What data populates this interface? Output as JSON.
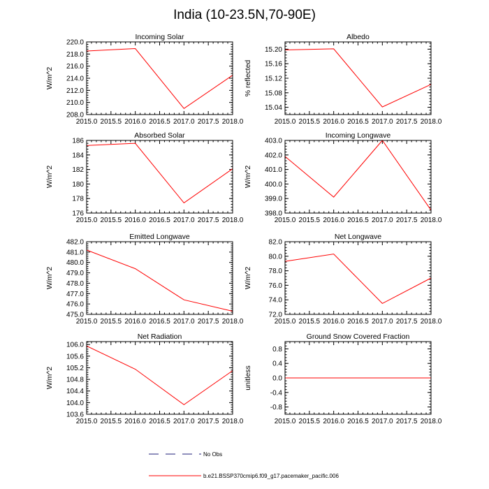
{
  "figure_title": "India (10-23.5N,70-90E)",
  "chart_data": [
    {
      "type": "line",
      "title": "Incoming Solar",
      "xlabel": "",
      "ylabel": "W/m^2",
      "x": [
        2015.0,
        2016.0,
        2017.0,
        2018.0
      ],
      "series": [
        {
          "name": "b.e21.BSSP370cmip6.f09_g17.pacemaker_pacific.006",
          "values": [
            218.5,
            218.9,
            209.0,
            214.5
          ]
        }
      ],
      "xlim": [
        2015.0,
        2018.0
      ],
      "ylim": [
        208.0,
        220.0
      ],
      "xticks": [
        "2015.0",
        "2015.5",
        "2016.0",
        "2016.5",
        "2017.0",
        "2017.5",
        "2018.0"
      ],
      "yticks": [
        "208.0",
        "210.0",
        "212.0",
        "214.0",
        "216.0",
        "218.0",
        "220.0"
      ]
    },
    {
      "type": "line",
      "title": "Albedo",
      "xlabel": "",
      "ylabel": "% reflected",
      "x": [
        2015.0,
        2016.0,
        2017.0,
        2018.0
      ],
      "series": [
        {
          "name": "b.e21.BSSP370cmip6.f09_g17.pacemaker_pacific.006",
          "values": [
            15.198,
            15.201,
            15.041,
            15.103
          ]
        }
      ],
      "xlim": [
        2015.0,
        2018.0
      ],
      "ylim": [
        15.02,
        15.22
      ],
      "xticks": [
        "2015.0",
        "2015.5",
        "2016.0",
        "2016.5",
        "2017.0",
        "2017.5",
        "2018.0"
      ],
      "yticks": [
        "15.04",
        "15.08",
        "15.12",
        "15.16",
        "15.20"
      ]
    },
    {
      "type": "line",
      "title": "Absorbed Solar",
      "xlabel": "",
      "ylabel": "W/m^2",
      "x": [
        2015.0,
        2016.0,
        2017.0,
        2018.0
      ],
      "series": [
        {
          "name": "b.e21.BSSP370cmip6.f09_g17.pacemaker_pacific.006",
          "values": [
            185.3,
            185.6,
            177.4,
            182.1
          ]
        }
      ],
      "xlim": [
        2015.0,
        2018.0
      ],
      "ylim": [
        176.0,
        186.0
      ],
      "xticks": [
        "2015.0",
        "2015.5",
        "2016.0",
        "2016.5",
        "2017.0",
        "2017.5",
        "2018.0"
      ],
      "yticks": [
        "176",
        "178",
        "180",
        "182",
        "184",
        "186"
      ]
    },
    {
      "type": "line",
      "title": "Incoming Longwave",
      "xlabel": "",
      "ylabel": "W/m^2",
      "x": [
        2015.0,
        2016.0,
        2017.0,
        2018.0
      ],
      "series": [
        {
          "name": "b.e21.BSSP370cmip6.f09_g17.pacemaker_pacific.006",
          "values": [
            401.9,
            399.1,
            403.0,
            398.2
          ]
        }
      ],
      "xlim": [
        2015.0,
        2018.0
      ],
      "ylim": [
        398.0,
        403.0
      ],
      "xticks": [
        "2015.0",
        "2015.5",
        "2016.0",
        "2016.5",
        "2017.0",
        "2017.5",
        "2018.0"
      ],
      "yticks": [
        "398.0",
        "399.0",
        "400.0",
        "401.0",
        "402.0",
        "403.0"
      ]
    },
    {
      "type": "line",
      "title": "Emitted Longwave",
      "xlabel": "",
      "ylabel": "W/m^2",
      "x": [
        2015.0,
        2016.0,
        2017.0,
        2018.0
      ],
      "series": [
        {
          "name": "b.e21.BSSP370cmip6.f09_g17.pacemaker_pacific.006",
          "values": [
            481.2,
            479.4,
            476.4,
            475.3
          ]
        }
      ],
      "xlim": [
        2015.0,
        2018.0
      ],
      "ylim": [
        475.0,
        482.0
      ],
      "xticks": [
        "2015.0",
        "2015.5",
        "2016.0",
        "2016.5",
        "2017.0",
        "2017.5",
        "2018.0"
      ],
      "yticks": [
        "475.0",
        "476.0",
        "477.0",
        "478.0",
        "479.0",
        "480.0",
        "481.0",
        "482.0"
      ]
    },
    {
      "type": "line",
      "title": "Net Longwave",
      "xlabel": "",
      "ylabel": "W/m^2",
      "x": [
        2015.0,
        2016.0,
        2017.0,
        2018.0
      ],
      "series": [
        {
          "name": "b.e21.BSSP370cmip6.f09_g17.pacemaker_pacific.006",
          "values": [
            79.3,
            80.3,
            73.5,
            77.0
          ]
        }
      ],
      "xlim": [
        2015.0,
        2018.0
      ],
      "ylim": [
        72.0,
        82.0
      ],
      "xticks": [
        "2015.0",
        "2015.5",
        "2016.0",
        "2016.5",
        "2017.0",
        "2017.5",
        "2018.0"
      ],
      "yticks": [
        "72.0",
        "74.0",
        "76.0",
        "78.0",
        "80.0",
        "82.0"
      ]
    },
    {
      "type": "line",
      "title": "Net Radiation",
      "xlabel": "",
      "ylabel": "W/m^2",
      "x": [
        2015.0,
        2016.0,
        2017.0,
        2018.0
      ],
      "series": [
        {
          "name": "b.e21.BSSP370cmip6.f09_g17.pacemaker_pacific.006",
          "values": [
            105.95,
            105.15,
            103.93,
            105.1
          ]
        }
      ],
      "xlim": [
        2015.0,
        2018.0
      ],
      "ylim": [
        103.6,
        106.1
      ],
      "xticks": [
        "2015.0",
        "2015.5",
        "2016.0",
        "2016.5",
        "2017.0",
        "2017.5",
        "2018.0"
      ],
      "yticks": [
        "103.6",
        "104.0",
        "104.4",
        "104.8",
        "105.2",
        "105.6",
        "106.0"
      ]
    },
    {
      "type": "line",
      "title": "Ground Snow Covered Fraction",
      "xlabel": "",
      "ylabel": "unitless",
      "x": [
        2015.0,
        2016.0,
        2017.0,
        2018.0
      ],
      "series": [
        {
          "name": "b.e21.BSSP370cmip6.f09_g17.pacemaker_pacific.006",
          "values": [
            0.0,
            0.0,
            0.0,
            0.0
          ]
        }
      ],
      "xlim": [
        2015.0,
        2018.0
      ],
      "ylim": [
        -1.0,
        1.0
      ],
      "xticks": [
        "2015.0",
        "2015.5",
        "2016.0",
        "2016.5",
        "2017.0",
        "2017.5",
        "2018.0"
      ],
      "yticks": [
        "-0.8",
        "-0.4",
        "0.0",
        "0.4",
        "0.8"
      ]
    }
  ],
  "legend": [
    {
      "label": "No Obs",
      "style": "dashed",
      "color": "#1f1f7a"
    },
    {
      "label": "b.e21.BSSP370cmip6.f09_g17.pacemaker_pacific.006",
      "style": "solid",
      "color": "#ff0000"
    }
  ],
  "colors": {
    "series": "#ff0000",
    "axis": "#000000",
    "obs": "#1f1f7a"
  }
}
